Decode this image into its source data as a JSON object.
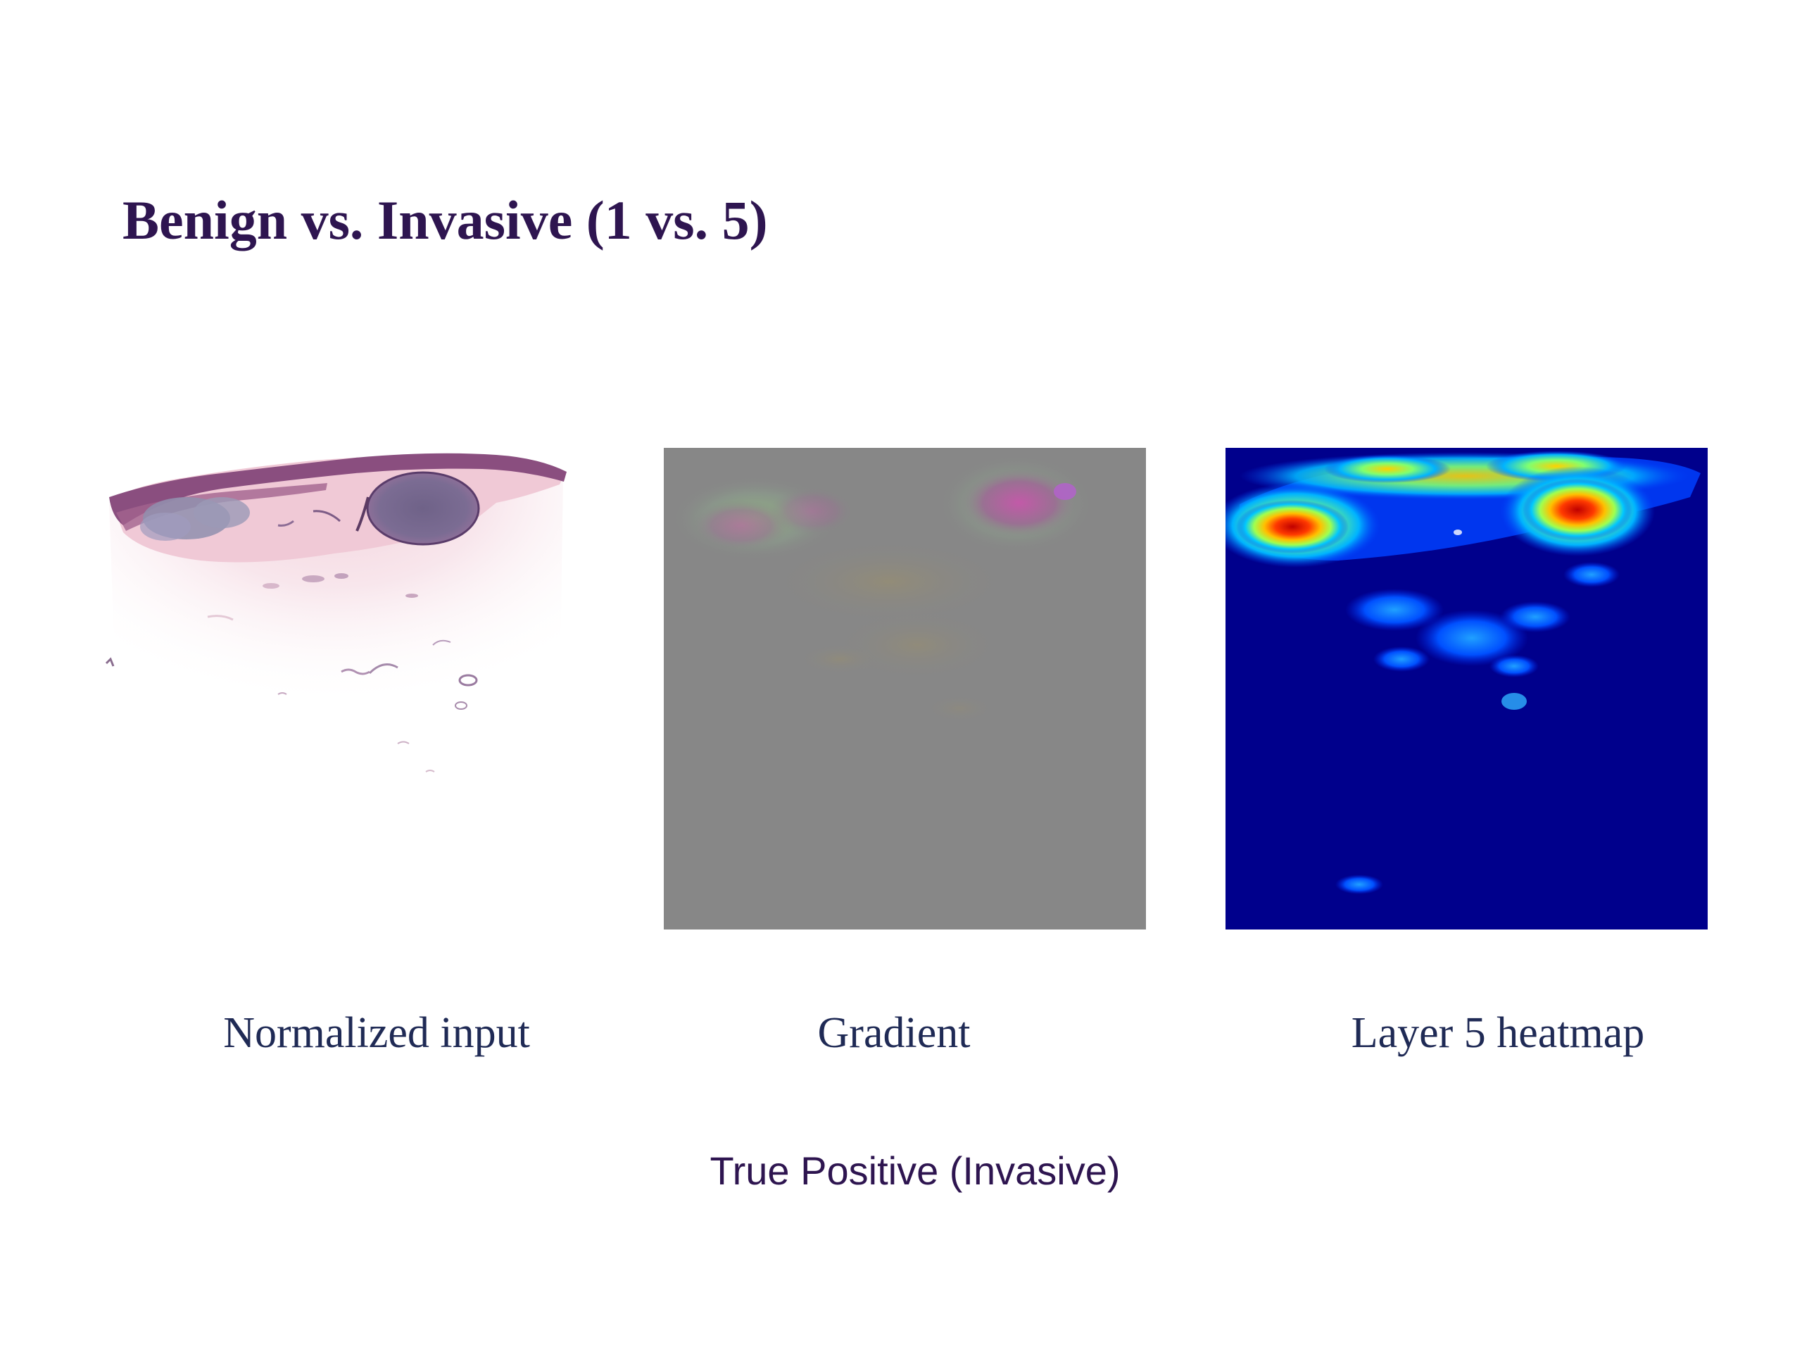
{
  "slide": {
    "title": "Benign vs. Invasive (1 vs. 5)",
    "footer": "True Positive (Invasive)"
  },
  "panels": [
    {
      "id": "normalized-input",
      "caption": "Normalized input",
      "image": "h&e-stained skin tissue section"
    },
    {
      "id": "gradient",
      "caption": "Gradient",
      "image": "gray gradient map with colored highlights"
    },
    {
      "id": "layer-5-heatmap",
      "caption": "Layer 5 heatmap",
      "image": "jet-colormap activation heatmap"
    }
  ],
  "colors": {
    "title": "#2e1550",
    "caption": "#1f2a55",
    "gradient_background": "#878787",
    "heatmap_background": "#00008c"
  }
}
